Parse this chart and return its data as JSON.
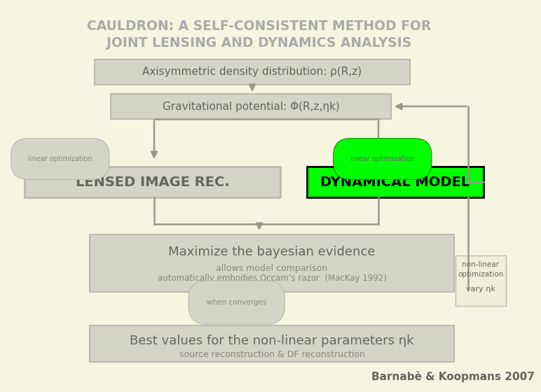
{
  "bg_color": "#f5f5e0",
  "title_line1": "CAULDRON: A SELF-CONSISTENT METHOD FOR",
  "title_line2": "JOINT LENSING AND DYNAMICS ANALYSIS",
  "title_color": "#aaaaaa",
  "box_density_text": "Axisymmetric density distribution: ρ(R,z)",
  "box_potential_text": "Gravitational potential: Φ(R,z,ηk)",
  "box_lensed_text": "LENSED IMAGE REC.",
  "box_dynamical_text": "DYNAMICAL MODEL",
  "box_maximize_title": "Maximize the bayesian evidence",
  "box_maximize_sub1": "allows model comparison",
  "box_maximize_sub2": "automatically embodies Occam’s razor  (MacKay 1992)",
  "box_best_title": "Best values for the non-linear parameters ηk",
  "box_best_sub": "source reconstruction & DF reconstruction",
  "label_linear_left": "linear optimization",
  "label_linear_right": "linear optimization",
  "label_when_converges": "when converges",
  "citation": "Barnabè & Koopmans 2007",
  "box_fill_main": "#d4d4c8",
  "box_fill_green": "#00ff00",
  "box_fill_cream": "#f0f0d8",
  "box_stroke": "#bbbbaa",
  "arrow_color": "#999988",
  "text_gray": "#888880",
  "text_dark": "#666660"
}
